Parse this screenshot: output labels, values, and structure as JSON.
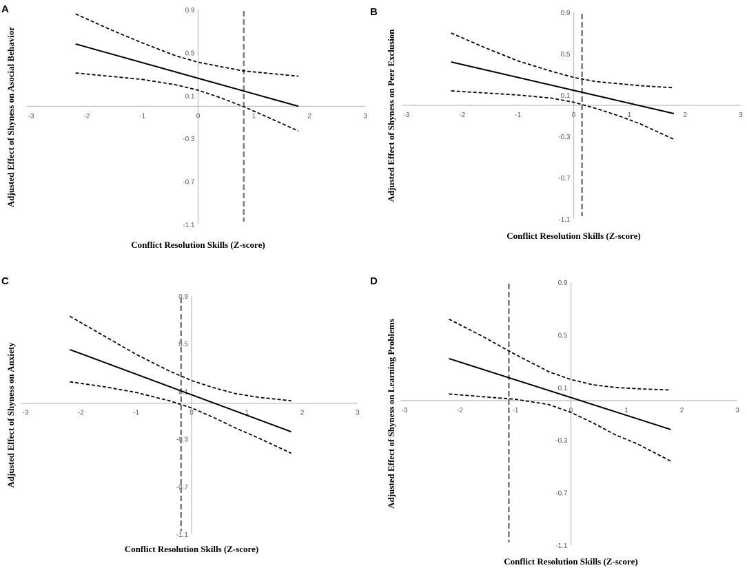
{
  "chart_data": [
    {
      "panel": "A",
      "type": "line",
      "xlabel": "Conflict Resolution Skills (Z-score)",
      "ylabel": "Adjusted Effect of Shyness on Asocial Behavior",
      "xlim": [
        -3,
        3
      ],
      "ylim": [
        -1.1,
        0.9
      ],
      "xticks": [
        "-3",
        "-2",
        "-1",
        "0",
        "1",
        "2",
        "3"
      ],
      "yticks": [
        "0.9",
        "0.5",
        "0.1",
        "-0.3",
        "-0.7",
        "-1.1"
      ],
      "region_of_significance_x": 0.82,
      "series": [
        {
          "name": "estimate",
          "style": "solid",
          "x": [
            -2.2,
            1.8
          ],
          "y": [
            0.58,
            0.0
          ]
        },
        {
          "name": "upper bound",
          "style": "dashed",
          "x": [
            -2.2,
            -1.6,
            -1.0,
            -0.4,
            0.0,
            0.4,
            0.8,
            1.2,
            1.8
          ],
          "y": [
            0.86,
            0.72,
            0.59,
            0.47,
            0.41,
            0.37,
            0.33,
            0.31,
            0.28
          ]
        },
        {
          "name": "lower bound",
          "style": "dashed",
          "x": [
            -2.2,
            -1.6,
            -1.0,
            -0.4,
            0.0,
            0.4,
            0.8,
            1.2,
            1.8
          ],
          "y": [
            0.31,
            0.28,
            0.25,
            0.2,
            0.15,
            0.08,
            0.0,
            -0.09,
            -0.23
          ]
        }
      ]
    },
    {
      "panel": "B",
      "type": "line",
      "xlabel": "Conflict Resolution Skills (Z-score)",
      "ylabel": "Adjusted Effect of Shyness on Peer Exclusion",
      "xlim": [
        -3,
        3
      ],
      "ylim": [
        -1.1,
        0.9
      ],
      "xticks": [
        "-3",
        "-2",
        "-1",
        "0",
        "1",
        "2",
        "3"
      ],
      "yticks": [
        "0.9",
        "0.5",
        "0.1",
        "-0.3",
        "-0.7",
        "-1.1"
      ],
      "region_of_significance_x": 0.15,
      "series": [
        {
          "name": "estimate",
          "style": "solid",
          "x": [
            -2.2,
            1.8
          ],
          "y": [
            0.42,
            -0.08
          ]
        },
        {
          "name": "upper bound",
          "style": "dashed",
          "x": [
            -2.2,
            -1.6,
            -1.0,
            -0.4,
            0.0,
            0.4,
            0.8,
            1.2,
            1.8
          ],
          "y": [
            0.7,
            0.56,
            0.43,
            0.33,
            0.27,
            0.23,
            0.21,
            0.19,
            0.17
          ]
        },
        {
          "name": "lower bound",
          "style": "dashed",
          "x": [
            -2.2,
            -1.6,
            -1.0,
            -0.4,
            0.0,
            0.4,
            0.8,
            1.2,
            1.8
          ],
          "y": [
            0.14,
            0.12,
            0.1,
            0.07,
            0.03,
            -0.03,
            -0.1,
            -0.18,
            -0.33
          ]
        }
      ]
    },
    {
      "panel": "C",
      "type": "line",
      "xlabel": "Conflict Resolution Skills (Z-score)",
      "ylabel": "Adjusted Effect of Shyness on Anxiety",
      "xlim": [
        -3,
        3
      ],
      "ylim": [
        -1.1,
        0.9
      ],
      "xticks": [
        "-3",
        "-2",
        "-1",
        "0",
        "1",
        "2",
        "3"
      ],
      "yticks": [
        "0.9",
        "0.5",
        "0.1",
        "-0.3",
        "-0.7",
        "-1.1"
      ],
      "region_of_significance_x": -0.19,
      "series": [
        {
          "name": "estimate",
          "style": "solid",
          "x": [
            -2.2,
            1.8
          ],
          "y": [
            0.45,
            -0.24
          ]
        },
        {
          "name": "upper bound",
          "style": "dashed",
          "x": [
            -2.2,
            -1.6,
            -1.0,
            -0.4,
            0.0,
            0.4,
            0.8,
            1.2,
            1.8
          ],
          "y": [
            0.73,
            0.57,
            0.41,
            0.27,
            0.19,
            0.13,
            0.08,
            0.05,
            0.02
          ]
        },
        {
          "name": "lower bound",
          "style": "dashed",
          "x": [
            -2.2,
            -1.6,
            -1.0,
            -0.4,
            0.0,
            0.4,
            0.8,
            1.2,
            1.8
          ],
          "y": [
            0.18,
            0.14,
            0.09,
            0.02,
            -0.04,
            -0.12,
            -0.21,
            -0.29,
            -0.42
          ]
        }
      ]
    },
    {
      "panel": "D",
      "type": "line",
      "xlabel": "Conflict Resolution Skills (Z-score)",
      "ylabel": "Adjusted Effect of Shyness on Learning Problems",
      "xlim": [
        -3,
        3
      ],
      "ylim": [
        -1.1,
        0.9
      ],
      "xticks": [
        "-3",
        "-2",
        "-1",
        "0",
        "1",
        "2",
        "3"
      ],
      "yticks": [
        "0.9",
        "0.5",
        "0.1",
        "-0.3",
        "-0.7",
        "-1.1"
      ],
      "region_of_significance_x": -1.12,
      "series": [
        {
          "name": "estimate",
          "style": "solid",
          "x": [
            -2.2,
            1.8
          ],
          "y": [
            0.32,
            -0.22
          ]
        },
        {
          "name": "upper bound",
          "style": "dashed",
          "x": [
            -2.2,
            -1.6,
            -1.0,
            -0.4,
            0.0,
            0.4,
            0.8,
            1.2,
            1.8
          ],
          "y": [
            0.62,
            0.49,
            0.35,
            0.22,
            0.16,
            0.12,
            0.1,
            0.09,
            0.08
          ]
        },
        {
          "name": "lower bound",
          "style": "dashed",
          "x": [
            -2.2,
            -1.6,
            -1.0,
            -0.4,
            0.0,
            0.4,
            0.8,
            1.2,
            1.8
          ],
          "y": [
            0.05,
            0.03,
            0.01,
            -0.03,
            -0.09,
            -0.17,
            -0.26,
            -0.33,
            -0.46
          ]
        }
      ]
    }
  ]
}
